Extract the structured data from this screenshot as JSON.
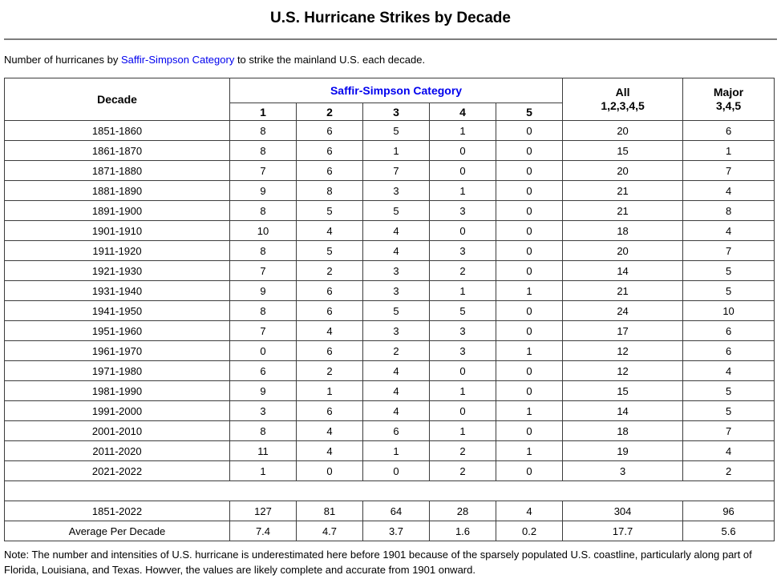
{
  "page": {
    "title": "U.S. Hurricane Strikes by Decade",
    "intro": {
      "prefix": "Number of hurricanes by ",
      "link_text": "Saffir-Simpson Category",
      "suffix": " to strike the mainland U.S. each decade."
    },
    "note": "Note: The number and intensities of U.S. hurricane is underestimated here before 1901 because of the sparsely populated U.S. coastline, particularly along part of Florida, Louisiana, and Texas. Howver, the values are likely complete and accurate from 1901 onward."
  },
  "colors": {
    "link_blue": "#0000EE",
    "category_header_blue": "#0000EE",
    "table_border": "#3c3c3c",
    "rule_gray": "#7d7d7d"
  },
  "table": {
    "headers": {
      "decade": "Decade",
      "category_group": "Saffir-Simpson Category",
      "categories": [
        "1",
        "2",
        "3",
        "4",
        "5"
      ],
      "all_line1": "All",
      "all_line2": "1,2,3,4,5",
      "major_line1": "Major",
      "major_line2": "3,4,5"
    },
    "rows": [
      {
        "decade": "1851-1860",
        "values": [
          "8",
          "6",
          "5",
          "1",
          "0",
          "20",
          "6"
        ]
      },
      {
        "decade": "1861-1870",
        "values": [
          "8",
          "6",
          "1",
          "0",
          "0",
          "15",
          "1"
        ]
      },
      {
        "decade": "1871-1880",
        "values": [
          "7",
          "6",
          "7",
          "0",
          "0",
          "20",
          "7"
        ]
      },
      {
        "decade": "1881-1890",
        "values": [
          "9",
          "8",
          "3",
          "1",
          "0",
          "21",
          "4"
        ]
      },
      {
        "decade": "1891-1900",
        "values": [
          "8",
          "5",
          "5",
          "3",
          "0",
          "21",
          "8"
        ]
      },
      {
        "decade": "1901-1910",
        "values": [
          "10",
          "4",
          "4",
          "0",
          "0",
          "18",
          "4"
        ]
      },
      {
        "decade": "1911-1920",
        "values": [
          "8",
          "5",
          "4",
          "3",
          "0",
          "20",
          "7"
        ]
      },
      {
        "decade": "1921-1930",
        "values": [
          "7",
          "2",
          "3",
          "2",
          "0",
          "14",
          "5"
        ]
      },
      {
        "decade": "1931-1940",
        "values": [
          "9",
          "6",
          "3",
          "1",
          "1",
          "21",
          "5"
        ]
      },
      {
        "decade": "1941-1950",
        "values": [
          "8",
          "6",
          "5",
          "5",
          "0",
          "24",
          "10"
        ]
      },
      {
        "decade": "1951-1960",
        "values": [
          "7",
          "4",
          "3",
          "3",
          "0",
          "17",
          "6"
        ]
      },
      {
        "decade": "1961-1970",
        "values": [
          "0",
          "6",
          "2",
          "3",
          "1",
          "12",
          "6"
        ]
      },
      {
        "decade": "1971-1980",
        "values": [
          "6",
          "2",
          "4",
          "0",
          "0",
          "12",
          "4"
        ]
      },
      {
        "decade": "1981-1990",
        "values": [
          "9",
          "1",
          "4",
          "1",
          "0",
          "15",
          "5"
        ]
      },
      {
        "decade": "1991-2000",
        "values": [
          "3",
          "6",
          "4",
          "0",
          "1",
          "14",
          "5"
        ]
      },
      {
        "decade": "2001-2010",
        "values": [
          "8",
          "4",
          "6",
          "1",
          "0",
          "18",
          "7"
        ]
      },
      {
        "decade": "2011-2020",
        "values": [
          "11",
          "4",
          "1",
          "2",
          "1",
          "19",
          "4"
        ]
      },
      {
        "decade": "2021-2022",
        "values": [
          "1",
          "0",
          "0",
          "2",
          "0",
          "3",
          "2"
        ]
      }
    ],
    "totals": {
      "decade": "1851-2022",
      "values": [
        "127",
        "81",
        "64",
        "28",
        "4",
        "304",
        "96"
      ]
    },
    "average": {
      "decade": "Average Per Decade",
      "values": [
        "7.4",
        "4.7",
        "3.7",
        "1.6",
        "0.2",
        "17.7",
        "5.6"
      ]
    }
  }
}
